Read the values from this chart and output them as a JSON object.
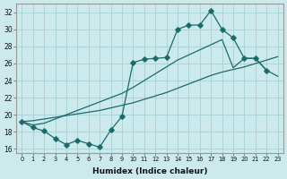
{
  "xlabel": "Humidex (Indice chaleur)",
  "bg_color": "#cce9ec",
  "grid_color": "#aad4d8",
  "line_color": "#1a6b6b",
  "xlim": [
    -0.5,
    23.5
  ],
  "ylim": [
    15.5,
    33.0
  ],
  "yticks": [
    16,
    18,
    20,
    22,
    24,
    26,
    28,
    30,
    32
  ],
  "xticks": [
    0,
    1,
    2,
    3,
    4,
    5,
    6,
    7,
    8,
    9,
    10,
    11,
    12,
    13,
    14,
    15,
    16,
    17,
    18,
    19,
    20,
    21,
    22,
    23
  ],
  "line1_x": [
    0,
    1,
    2,
    3,
    4,
    5,
    6,
    7,
    8,
    9,
    10,
    11,
    12,
    13,
    14,
    15,
    16,
    17,
    18,
    19,
    20,
    21,
    22
  ],
  "line1_y": [
    19.2,
    18.5,
    18.1,
    17.2,
    16.5,
    17.0,
    16.6,
    16.2,
    18.2,
    19.8,
    26.1,
    26.5,
    26.6,
    26.7,
    30.0,
    30.5,
    30.5,
    32.2,
    30.0,
    29.0,
    26.6,
    26.6,
    25.2
  ],
  "line2_x": [
    0,
    1,
    2,
    3,
    4,
    5,
    6,
    7,
    8,
    9,
    10,
    11,
    12,
    13,
    14,
    15,
    16,
    17,
    18,
    19,
    20,
    21,
    22,
    23
  ],
  "line2_y": [
    19.2,
    18.8,
    19.0,
    19.5,
    20.0,
    20.5,
    21.0,
    21.5,
    22.0,
    22.5,
    23.2,
    24.0,
    24.8,
    25.6,
    26.4,
    27.0,
    27.6,
    28.2,
    28.8,
    25.5,
    26.6,
    26.6,
    25.2,
    24.5
  ],
  "line3_x": [
    0,
    1,
    2,
    3,
    4,
    5,
    6,
    7,
    8,
    9,
    10,
    11,
    12,
    13,
    14,
    15,
    16,
    17,
    18,
    19,
    20,
    21,
    22,
    23
  ],
  "line3_y": [
    19.2,
    19.3,
    19.5,
    19.7,
    19.9,
    20.1,
    20.3,
    20.5,
    20.8,
    21.1,
    21.4,
    21.8,
    22.2,
    22.6,
    23.1,
    23.6,
    24.1,
    24.6,
    25.0,
    25.3,
    25.6,
    26.0,
    26.4,
    26.8
  ]
}
